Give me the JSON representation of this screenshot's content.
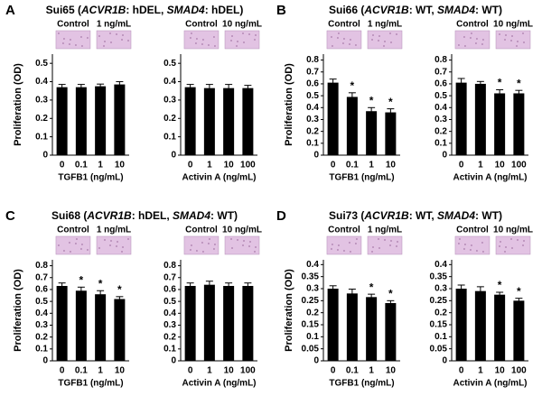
{
  "panels": [
    {
      "letter": "A",
      "title": [
        {
          "text": "Sui65 ("
        },
        {
          "text": "ACVR1B",
          "italic": true
        },
        {
          "text": ": hDEL, "
        },
        {
          "text": "SMAD4",
          "italic": true
        },
        {
          "text": ": hDEL)"
        }
      ]
    },
    {
      "letter": "B",
      "title": [
        {
          "text": "Sui66 ("
        },
        {
          "text": "ACVR1B",
          "italic": true
        },
        {
          "text": ": WT, "
        },
        {
          "text": "SMAD4",
          "italic": true
        },
        {
          "text": ": WT)"
        }
      ]
    },
    {
      "letter": "C",
      "title": [
        {
          "text": "Sui68 ("
        },
        {
          "text": "ACVR1B",
          "italic": true
        },
        {
          "text": ": hDEL, "
        },
        {
          "text": "SMAD4",
          "italic": true
        },
        {
          "text": ": WT)"
        }
      ]
    },
    {
      "letter": "D",
      "title": [
        {
          "text": "Sui73 ("
        },
        {
          "text": "ACVR1B",
          "italic": true
        },
        {
          "text": ": WT, "
        },
        {
          "text": "SMAD4",
          "italic": true
        },
        {
          "text": ": WT)"
        }
      ]
    }
  ],
  "chart_data": [
    {
      "type": "bar",
      "ylabel": "Proliferation (OD)",
      "xlabel": "TGFB1 (ng/mL)",
      "images": [
        "Control",
        "1 ng/mL"
      ],
      "categories": [
        "0",
        "0.1",
        "1",
        "10"
      ],
      "values": [
        0.37,
        0.37,
        0.375,
        0.385
      ],
      "errors": [
        0.015,
        0.015,
        0.012,
        0.015
      ],
      "annotations": [
        null,
        null,
        null,
        null
      ],
      "color": "#000000",
      "ylim": [
        0,
        0.55
      ],
      "yticks": [
        0,
        0.1,
        0.2,
        0.3,
        0.4,
        0.5
      ]
    },
    {
      "type": "bar",
      "xlabel": "Activin A (ng/mL)",
      "images": [
        "Control",
        "10 ng/mL"
      ],
      "categories": [
        "0",
        "1",
        "10",
        "100"
      ],
      "values": [
        0.37,
        0.365,
        0.365,
        0.365
      ],
      "errors": [
        0.015,
        0.02,
        0.02,
        0.015
      ],
      "annotations": [
        null,
        null,
        null,
        null
      ],
      "color": "#000000",
      "ylim": [
        0,
        0.55
      ],
      "yticks": [
        0,
        0.1,
        0.2,
        0.3,
        0.4,
        0.5
      ]
    },
    {
      "type": "bar",
      "ylabel": "Proliferation (OD)",
      "xlabel": "TGFB1 (ng/mL)",
      "images": [
        "Control",
        "1 ng/mL"
      ],
      "categories": [
        "0",
        "0.1",
        "1",
        "10"
      ],
      "values": [
        0.61,
        0.49,
        0.37,
        0.36
      ],
      "errors": [
        0.03,
        0.035,
        0.03,
        0.03
      ],
      "annotations": [
        null,
        "*",
        "*",
        "*"
      ],
      "color": "#000000",
      "ylim": [
        0,
        0.85
      ],
      "yticks": [
        0,
        0.1,
        0.2,
        0.3,
        0.4,
        0.5,
        0.6,
        0.7,
        0.8
      ]
    },
    {
      "type": "bar",
      "xlabel": "Activin A (ng/mL)",
      "images": [
        "Control",
        "10 ng/mL"
      ],
      "categories": [
        "0",
        "1",
        "10",
        "100"
      ],
      "values": [
        0.61,
        0.6,
        0.52,
        0.52
      ],
      "errors": [
        0.035,
        0.02,
        0.03,
        0.025
      ],
      "annotations": [
        null,
        null,
        "*",
        "*"
      ],
      "color": "#000000",
      "ylim": [
        0,
        0.85
      ],
      "yticks": [
        0,
        0.1,
        0.2,
        0.3,
        0.4,
        0.5,
        0.6,
        0.7,
        0.8
      ]
    },
    {
      "type": "bar",
      "ylabel": "Proliferation (OD)",
      "xlabel": "TGFB1 (ng/mL)",
      "images": [
        "Control",
        "1 ng/mL"
      ],
      "categories": [
        "0",
        "0.1",
        "1",
        "10"
      ],
      "values": [
        0.63,
        0.59,
        0.56,
        0.52
      ],
      "errors": [
        0.025,
        0.03,
        0.03,
        0.02
      ],
      "annotations": [
        null,
        "*",
        "*",
        "*"
      ],
      "color": "#000000",
      "ylim": [
        0,
        0.85
      ],
      "yticks": [
        0,
        0.1,
        0.2,
        0.3,
        0.4,
        0.5,
        0.6,
        0.7,
        0.8
      ]
    },
    {
      "type": "bar",
      "xlabel": "Activin A (ng/mL)",
      "images": [
        "Control",
        "10 ng/mL"
      ],
      "categories": [
        "0",
        "1",
        "10",
        "100"
      ],
      "values": [
        0.63,
        0.64,
        0.63,
        0.63
      ],
      "errors": [
        0.025,
        0.03,
        0.025,
        0.025
      ],
      "annotations": [
        null,
        null,
        null,
        null
      ],
      "color": "#000000",
      "ylim": [
        0,
        0.85
      ],
      "yticks": [
        0,
        0.1,
        0.2,
        0.3,
        0.4,
        0.5,
        0.6,
        0.7,
        0.8
      ]
    },
    {
      "type": "bar",
      "ylabel": "Proliferation (OD)",
      "xlabel": "TGFB1 (ng/mL)",
      "images": [
        "Control",
        "1 ng/mL"
      ],
      "categories": [
        "0",
        "0.1",
        "1",
        "10"
      ],
      "values": [
        0.3,
        0.28,
        0.265,
        0.24
      ],
      "errors": [
        0.012,
        0.018,
        0.012,
        0.01
      ],
      "annotations": [
        null,
        null,
        "*",
        "*"
      ],
      "color": "#000000",
      "ylim": [
        0,
        0.42
      ],
      "yticks": [
        0,
        0.05,
        0.1,
        0.15,
        0.2,
        0.25,
        0.3,
        0.35,
        0.4
      ]
    },
    {
      "type": "bar",
      "xlabel": "Activin A (ng/mL)",
      "images": [
        "Control",
        "10 ng/mL"
      ],
      "categories": [
        "0",
        "1",
        "10",
        "100"
      ],
      "values": [
        0.3,
        0.29,
        0.275,
        0.25
      ],
      "errors": [
        0.015,
        0.018,
        0.01,
        0.01
      ],
      "annotations": [
        null,
        null,
        "*",
        "*"
      ],
      "color": "#000000",
      "ylim": [
        0,
        0.42
      ],
      "yticks": [
        0,
        0.05,
        0.1,
        0.15,
        0.2,
        0.25,
        0.3,
        0.35,
        0.4
      ]
    }
  ]
}
